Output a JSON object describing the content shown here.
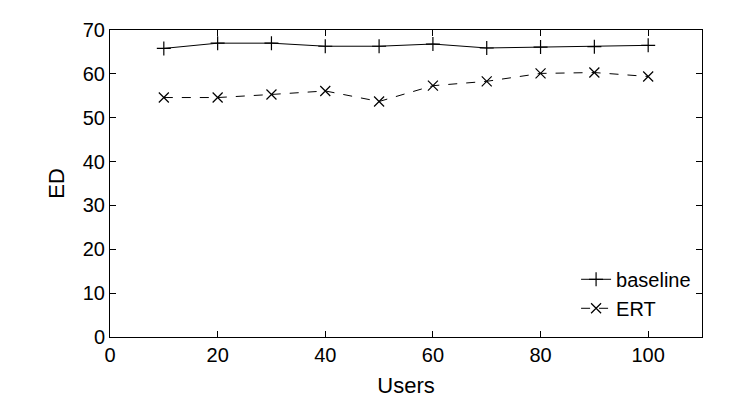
{
  "chart_data": {
    "type": "line",
    "x_label": "Users",
    "y_label": "ED",
    "x": [
      10,
      20,
      30,
      40,
      50,
      60,
      70,
      80,
      90,
      100
    ],
    "series": [
      {
        "name": "baseline",
        "color": "#000000",
        "marker": "plus",
        "line_style": "solid",
        "values": [
          65.8,
          67.0,
          67.0,
          66.3,
          66.3,
          66.8,
          65.9,
          66.1,
          66.2,
          66.5
        ]
      },
      {
        "name": "ERT",
        "color": "#000000",
        "marker": "x",
        "line_style": "dash",
        "values": [
          54.6,
          54.6,
          55.3,
          56.1,
          53.7,
          57.3,
          58.3,
          60.1,
          60.3,
          59.4
        ]
      }
    ],
    "xlim": [
      0,
      110
    ],
    "xticks": [
      0,
      20,
      40,
      60,
      80,
      100
    ],
    "ylim": [
      0,
      70
    ],
    "yticks": [
      0,
      10,
      20,
      30,
      40,
      50,
      60,
      70
    ],
    "grid": false,
    "legend": "lower right"
  }
}
